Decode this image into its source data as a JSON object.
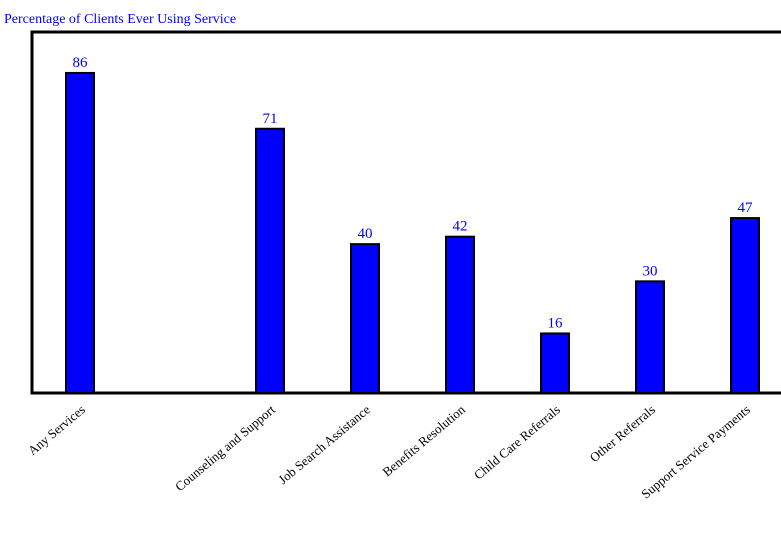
{
  "chart_data": {
    "type": "bar",
    "title": "Percentage of Clients Ever Using Service",
    "xlabel": "",
    "ylabel": "",
    "categories": [
      "Any Services",
      "Counseling and Support",
      "Job Search Assistance",
      "Benefits Resolution",
      "Child Care Referrals",
      "Other Referrals",
      "Support Service Payments"
    ],
    "values": [
      86,
      71,
      40,
      42,
      16,
      30,
      47
    ],
    "ylim": [
      0,
      97
    ],
    "grid": false,
    "legend": "none",
    "colors": {
      "bar": "#0000ff",
      "bar_stroke": "#000000",
      "label": "#0000ff",
      "title": "#0000ff",
      "axis": "#000000",
      "tick_text": "#000000"
    }
  }
}
